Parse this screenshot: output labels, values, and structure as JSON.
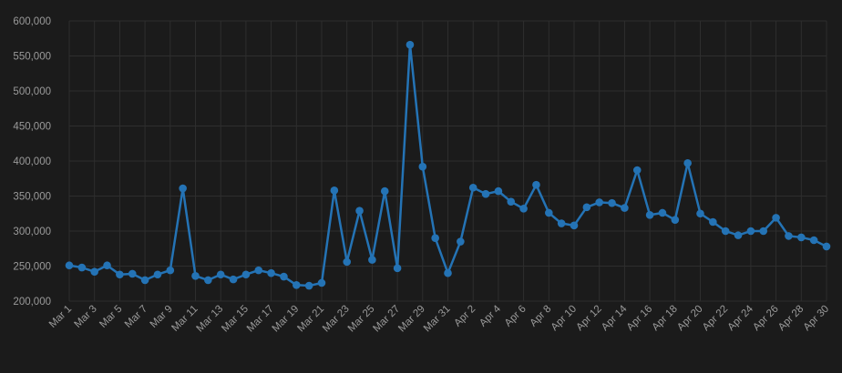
{
  "chart_data": {
    "type": "line",
    "grid": true,
    "ylim": [
      200000,
      600000
    ],
    "yticks": [
      200000,
      250000,
      300000,
      350000,
      400000,
      450000,
      500000,
      550000,
      600000
    ],
    "ytick_labels": [
      "200,000",
      "250,000",
      "300,000",
      "350,000",
      "400,000",
      "450,000",
      "500,000",
      "550,000",
      "600,000"
    ],
    "x": [
      "Mar 1",
      "Mar 2",
      "Mar 3",
      "Mar 4",
      "Mar 5",
      "Mar 6",
      "Mar 7",
      "Mar 8",
      "Mar 9",
      "Mar 10",
      "Mar 11",
      "Mar 12",
      "Mar 13",
      "Mar 14",
      "Mar 15",
      "Mar 16",
      "Mar 17",
      "Mar 18",
      "Mar 19",
      "Mar 20",
      "Mar 21",
      "Mar 22",
      "Mar 23",
      "Mar 24",
      "Mar 25",
      "Mar 26",
      "Mar 27",
      "Mar 28",
      "Mar 29",
      "Mar 30",
      "Mar 31",
      "Apr 1",
      "Apr 2",
      "Apr 3",
      "Apr 4",
      "Apr 5",
      "Apr 6",
      "Apr 7",
      "Apr 8",
      "Apr 9",
      "Apr 10",
      "Apr 11",
      "Apr 12",
      "Apr 13",
      "Apr 14",
      "Apr 15",
      "Apr 16",
      "Apr 17",
      "Apr 18",
      "Apr 19",
      "Apr 20",
      "Apr 21",
      "Apr 22",
      "Apr 23",
      "Apr 24",
      "Apr 25",
      "Apr 26",
      "Apr 27",
      "Apr 28",
      "Apr 29",
      "Apr 30"
    ],
    "xtick_labels": [
      "Mar 1",
      "Mar 3",
      "Mar 5",
      "Mar 7",
      "Mar 9",
      "Mar 11",
      "Mar 13",
      "Mar 15",
      "Mar 17",
      "Mar 19",
      "Mar 21",
      "Mar 23",
      "Mar 25",
      "Mar 27",
      "Mar 29",
      "Mar 31",
      "Apr 2",
      "Apr 4",
      "Apr 6",
      "Apr 8",
      "Apr 10",
      "Apr 12",
      "Apr 14",
      "Apr 16",
      "Apr 18",
      "Apr 20",
      "Apr 22",
      "Apr 24",
      "Apr 26",
      "Apr 28",
      "Apr 30"
    ],
    "series": [
      {
        "color": "#2473b5",
        "values": [
          251000,
          248000,
          242000,
          251000,
          238000,
          239000,
          230000,
          238000,
          244000,
          361000,
          236000,
          230000,
          238000,
          231000,
          238000,
          244000,
          240000,
          235000,
          223000,
          222000,
          226000,
          358000,
          256000,
          329000,
          259000,
          357000,
          247000,
          566000,
          392000,
          290000,
          240000,
          285000,
          362000,
          353000,
          357000,
          342000,
          332000,
          366000,
          326000,
          311000,
          308000,
          334000,
          341000,
          340000,
          333000,
          387000,
          323000,
          326000,
          316000,
          397000,
          325000,
          313000,
          300000,
          294000,
          300000,
          300000,
          319000,
          293000,
          291000,
          287000,
          278000
        ]
      }
    ]
  }
}
